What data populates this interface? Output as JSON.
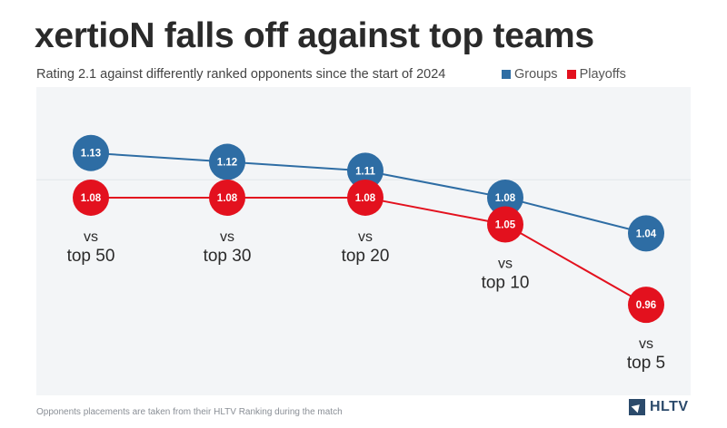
{
  "header": {
    "title": "xertioN falls off against top teams",
    "subtitle": "Rating 2.1 against differently ranked opponents since the start of 2024"
  },
  "chart_data": {
    "type": "line",
    "categories": [
      "vs top 50",
      "vs top 30",
      "vs top 20",
      "vs top 10",
      "vs top 5"
    ],
    "category_lines": [
      [
        "vs",
        "top 50"
      ],
      [
        "vs",
        "top 30"
      ],
      [
        "vs",
        "top 20"
      ],
      [
        "vs",
        "top 10"
      ],
      [
        "vs",
        "top 5"
      ]
    ],
    "series": [
      {
        "name": "Groups",
        "color": "#2e6da4",
        "values": [
          1.13,
          1.12,
          1.11,
          1.08,
          1.04
        ],
        "labels": [
          "1.13",
          "1.12",
          "1.11",
          "1.08",
          "1.04"
        ]
      },
      {
        "name": "Playoffs",
        "color": "#e3111e",
        "values": [
          1.08,
          1.08,
          1.08,
          1.05,
          0.96
        ],
        "labels": [
          "1.08",
          "1.08",
          "1.08",
          "1.05",
          "0.96"
        ]
      }
    ],
    "ylim": [
      0.9,
      1.16
    ],
    "legend_position": "top-right",
    "grid": false
  },
  "footer": {
    "footnote": "Opponents placements are taken from their HLTV Ranking during the match",
    "logo_text": "HLTV"
  }
}
